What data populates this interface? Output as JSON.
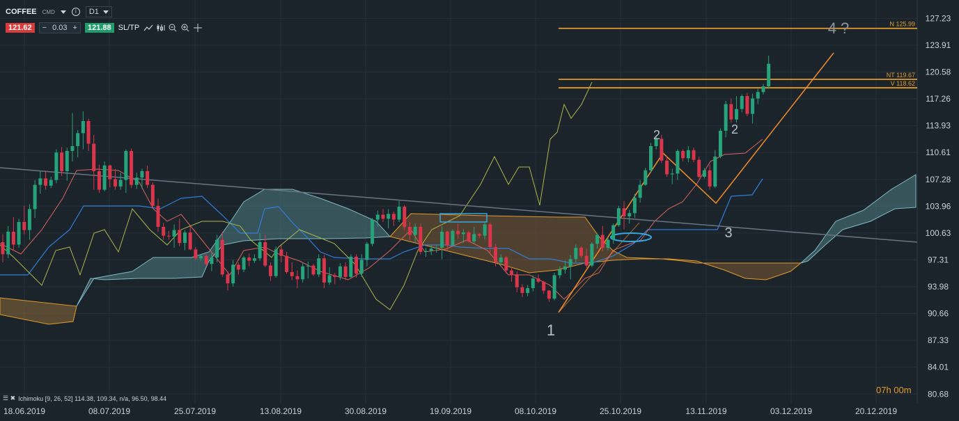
{
  "toolbar": {
    "symbol": "COFFEE",
    "market": "CMD",
    "timeframe": "D1",
    "bid": "121.62",
    "minus": "−",
    "quantity": "0.03",
    "plus": "+",
    "ask": "121.88",
    "sltp": "SL/TP"
  },
  "indicator_legend": "Ichimoku [9, 26, 52] 114.38, 109.34, n/a, 96.50, 98.44",
  "timer": "07h 00m",
  "colors": {
    "up": "#26a37a",
    "down": "#d9364b",
    "accent": "#e39b2a",
    "kijun": "#2f7fd8",
    "tenkan": "#d8645a",
    "chikou": "#a9b84a"
  },
  "chart_data": {
    "type": "candlestick",
    "symbol": "COFFEE",
    "ylim": [
      79.5,
      129.5
    ],
    "y_ticks": [
      "127.23",
      "123.91",
      "120.58",
      "117.26",
      "113.93",
      "110.61",
      "107.28",
      "103.96",
      "100.63",
      "97.31",
      "93.98",
      "90.66",
      "87.33",
      "84.01",
      "80.68"
    ],
    "x_ticks": [
      "18.06.2019",
      "08.07.2019",
      "25.07.2019",
      "13.08.2019",
      "30.08.2019",
      "19.09.2019",
      "08.10.2019",
      "25.10.2019",
      "13.11.2019",
      "03.12.2019",
      "20.12.2019"
    ],
    "levels": [
      {
        "label": "N 125.99",
        "value": 125.99
      },
      {
        "label": "NT 119.67",
        "value": 119.67
      },
      {
        "label": "V 118.62",
        "value": 118.62
      }
    ],
    "annotations": [
      "1",
      "2",
      "3",
      "4 ?",
      "2"
    ],
    "ohlc": [
      [
        99.5,
        100.5,
        97.0,
        98.0
      ],
      [
        98.0,
        101.5,
        97.5,
        100.8
      ],
      [
        100.8,
        102.6,
        98.5,
        99.2
      ],
      [
        99.2,
        102.4,
        98.8,
        102.0
      ],
      [
        102.0,
        104.0,
        100.5,
        101.0
      ],
      [
        101.0,
        104.2,
        99.8,
        103.6
      ],
      [
        103.6,
        107.2,
        102.5,
        106.6
      ],
      [
        106.6,
        108.3,
        105.5,
        107.4
      ],
      [
        107.4,
        108.3,
        106.0,
        106.5
      ],
      [
        106.5,
        107.6,
        106.2,
        107.2
      ],
      [
        107.2,
        111.0,
        106.8,
        110.6
      ],
      [
        110.6,
        111.3,
        107.7,
        108.3
      ],
      [
        108.3,
        111.2,
        107.1,
        110.8
      ],
      [
        110.8,
        115.5,
        109.5,
        111.4
      ],
      [
        111.4,
        113.4,
        110.0,
        113.0
      ],
      [
        113.0,
        115.7,
        111.0,
        114.5
      ],
      [
        114.5,
        114.8,
        110.8,
        111.7
      ],
      [
        111.7,
        112.8,
        106.0,
        108.3
      ],
      [
        108.3,
        109.1,
        105.6,
        106.0
      ],
      [
        106.0,
        109.5,
        105.8,
        109.0
      ],
      [
        109.0,
        109.1,
        106.3,
        107.3
      ],
      [
        107.3,
        108.6,
        106.0,
        106.4
      ],
      [
        106.4,
        108.1,
        106.0,
        107.2
      ],
      [
        107.2,
        111.0,
        105.6,
        110.8
      ],
      [
        110.8,
        111.1,
        106.2,
        106.6
      ],
      [
        106.6,
        108.1,
        106.1,
        107.5
      ],
      [
        107.5,
        108.6,
        106.1,
        108.3
      ],
      [
        108.3,
        109.0,
        106.2,
        106.6
      ],
      [
        106.6,
        106.9,
        103.8,
        104.0
      ],
      [
        104.0,
        104.9,
        100.8,
        101.4
      ],
      [
        101.4,
        101.9,
        99.8,
        100.3
      ],
      [
        100.3,
        100.9,
        99.8,
        100.2
      ],
      [
        100.2,
        101.7,
        98.8,
        101.0
      ],
      [
        101.0,
        102.4,
        99.0,
        99.4
      ],
      [
        99.4,
        101.0,
        98.5,
        100.7
      ],
      [
        100.7,
        101.5,
        98.5,
        98.6
      ],
      [
        98.6,
        98.9,
        97.3,
        97.5
      ],
      [
        97.5,
        98.0,
        97.2,
        97.8
      ],
      [
        97.8,
        98.0,
        96.5,
        96.8
      ],
      [
        96.8,
        98.1,
        95.9,
        97.6
      ],
      [
        97.6,
        100.4,
        97.0,
        99.8
      ],
      [
        99.8,
        100.8,
        95.2,
        95.5
      ],
      [
        95.5,
        95.9,
        93.5,
        94.4
      ],
      [
        94.4,
        97.3,
        94.0,
        96.7
      ],
      [
        96.7,
        97.0,
        95.5,
        96.1
      ],
      [
        96.1,
        97.8,
        95.8,
        97.6
      ],
      [
        97.6,
        98.1,
        96.5,
        97.2
      ],
      [
        97.2,
        98.0,
        96.9,
        97.5
      ],
      [
        97.5,
        100.6,
        97.2,
        99.5
      ],
      [
        99.5,
        100.4,
        96.4,
        96.6
      ],
      [
        96.6,
        97.0,
        94.7,
        95.3
      ],
      [
        95.3,
        99.0,
        95.1,
        98.6
      ],
      [
        98.6,
        99.1,
        97.0,
        97.8
      ],
      [
        97.8,
        98.3,
        95.6,
        95.8
      ],
      [
        95.8,
        97.0,
        94.8,
        95.3
      ],
      [
        95.3,
        96.0,
        93.8,
        94.9
      ],
      [
        94.9,
        96.9,
        94.5,
        96.5
      ],
      [
        96.5,
        97.1,
        95.0,
        96.6
      ],
      [
        96.6,
        96.8,
        95.3,
        95.5
      ],
      [
        95.5,
        98.0,
        95.2,
        97.5
      ],
      [
        97.5,
        97.9,
        93.8,
        94.5
      ],
      [
        94.5,
        96.4,
        94.2,
        95.4
      ],
      [
        95.4,
        95.7,
        94.3,
        95.2
      ],
      [
        95.2,
        96.9,
        94.8,
        96.5
      ],
      [
        96.5,
        97.0,
        94.8,
        95.2
      ],
      [
        95.2,
        98.0,
        95.0,
        97.7
      ],
      [
        97.7,
        98.0,
        95.1,
        95.6
      ],
      [
        95.6,
        98.0,
        95.2,
        97.3
      ],
      [
        97.3,
        99.5,
        96.5,
        99.3
      ],
      [
        99.3,
        102.5,
        99.0,
        102.3
      ],
      [
        102.3,
        103.4,
        101.4,
        102.9
      ],
      [
        102.9,
        103.6,
        102.0,
        102.4
      ],
      [
        102.4,
        103.6,
        101.2,
        103.0
      ],
      [
        103.0,
        103.3,
        101.5,
        102.3
      ],
      [
        102.3,
        104.6,
        102.0,
        103.9
      ],
      [
        103.9,
        104.1,
        101.0,
        101.4
      ],
      [
        101.4,
        102.0,
        99.8,
        100.4
      ],
      [
        100.4,
        101.8,
        99.4,
        101.4
      ],
      [
        101.4,
        101.8,
        98.0,
        98.3
      ],
      [
        98.3,
        98.8,
        97.7,
        98.4
      ],
      [
        98.4,
        99.2,
        97.9,
        98.7
      ],
      [
        98.7,
        99.1,
        98.2,
        98.8
      ],
      [
        98.8,
        101.5,
        97.4,
        100.8
      ],
      [
        100.8,
        100.9,
        98.4,
        99.1
      ],
      [
        99.1,
        101.1,
        99.0,
        100.9
      ],
      [
        100.9,
        101.8,
        99.9,
        100.5
      ],
      [
        100.5,
        101.1,
        99.4,
        100.7
      ],
      [
        100.7,
        100.9,
        99.5,
        99.6
      ],
      [
        99.6,
        101.4,
        99.3,
        100.5
      ],
      [
        100.5,
        100.6,
        100.0,
        100.3
      ],
      [
        100.3,
        102.1,
        99.8,
        101.7
      ],
      [
        101.7,
        101.9,
        98.1,
        98.9
      ],
      [
        98.9,
        99.3,
        96.5,
        97.0
      ],
      [
        97.0,
        98.0,
        96.6,
        97.6
      ],
      [
        97.6,
        97.8,
        95.6,
        96.0
      ],
      [
        96.0,
        96.4,
        94.6,
        95.4
      ],
      [
        95.4,
        95.9,
        93.3,
        93.9
      ],
      [
        93.9,
        94.3,
        92.7,
        93.2
      ],
      [
        93.2,
        94.2,
        92.8,
        93.8
      ],
      [
        93.8,
        95.4,
        93.4,
        95.0
      ],
      [
        95.0,
        95.5,
        94.4,
        94.6
      ],
      [
        94.6,
        94.7,
        93.1,
        93.5
      ],
      [
        93.5,
        93.6,
        92.1,
        92.5
      ],
      [
        92.5,
        95.7,
        92.3,
        95.4
      ],
      [
        95.4,
        96.5,
        95.0,
        96.1
      ],
      [
        96.1,
        97.2,
        95.6,
        96.5
      ],
      [
        96.5,
        97.9,
        94.9,
        97.4
      ],
      [
        97.4,
        99.2,
        97.0,
        98.8
      ],
      [
        98.8,
        99.0,
        97.5,
        97.8
      ],
      [
        97.8,
        98.7,
        96.3,
        96.6
      ],
      [
        96.6,
        99.5,
        96.4,
        99.3
      ],
      [
        99.3,
        100.6,
        98.7,
        100.4
      ],
      [
        100.4,
        101.5,
        98.4,
        98.8
      ],
      [
        98.8,
        100.1,
        98.5,
        99.8
      ],
      [
        99.8,
        101.8,
        99.3,
        101.6
      ],
      [
        101.6,
        104.0,
        101.4,
        103.7
      ],
      [
        103.7,
        104.6,
        101.1,
        102.7
      ],
      [
        102.7,
        103.5,
        101.8,
        103.1
      ],
      [
        103.1,
        105.5,
        102.5,
        105.0
      ],
      [
        105.0,
        107.2,
        104.4,
        106.6
      ],
      [
        106.6,
        108.7,
        106.5,
        108.4
      ],
      [
        108.4,
        111.8,
        108.1,
        111.4
      ],
      [
        111.4,
        112.6,
        111.0,
        112.3
      ],
      [
        112.3,
        112.8,
        109.3,
        109.6
      ],
      [
        109.6,
        110.2,
        107.6,
        107.9
      ],
      [
        107.9,
        108.6,
        106.7,
        108.0
      ],
      [
        108.0,
        111.0,
        107.2,
        110.8
      ],
      [
        110.8,
        111.0,
        109.5,
        109.9
      ],
      [
        109.9,
        111.4,
        109.4,
        110.9
      ],
      [
        110.9,
        111.2,
        109.4,
        109.7
      ],
      [
        109.7,
        110.1,
        107.4,
        107.6
      ],
      [
        107.6,
        108.7,
        107.4,
        108.4
      ],
      [
        108.4,
        109.1,
        106.0,
        106.4
      ],
      [
        106.4,
        110.9,
        106.2,
        110.1
      ],
      [
        110.1,
        113.6,
        109.9,
        113.3
      ],
      [
        113.3,
        117.0,
        112.5,
        116.6
      ],
      [
        116.6,
        117.3,
        114.3,
        114.7
      ],
      [
        114.7,
        117.6,
        114.3,
        116.0
      ],
      [
        116.0,
        117.8,
        115.6,
        117.6
      ],
      [
        117.6,
        118.0,
        115.1,
        115.4
      ],
      [
        115.4,
        117.9,
        114.2,
        117.3
      ],
      [
        117.3,
        118.5,
        116.6,
        118.1
      ],
      [
        118.1,
        119.1,
        117.8,
        118.8
      ],
      [
        118.8,
        122.6,
        118.5,
        121.6
      ]
    ]
  }
}
